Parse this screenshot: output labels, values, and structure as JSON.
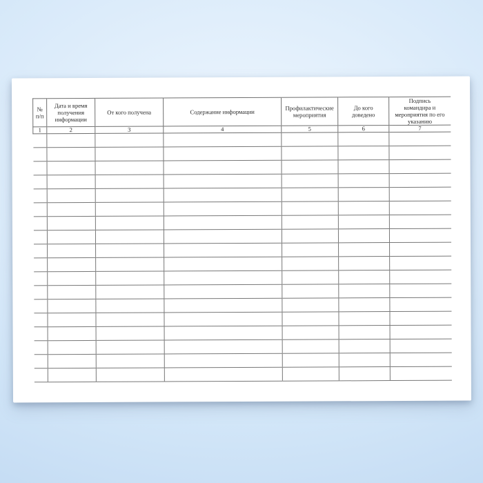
{
  "scene": {
    "background_center_color": "#eff7fe",
    "background_edge_color": "#bcd6f0",
    "paper_color": "#ffffff"
  },
  "journal_table": {
    "line_color": "#6e6e6e",
    "text_color": "#2b2b2b",
    "columns": [
      {
        "number": "1",
        "title": "№\nп/п"
      },
      {
        "number": "2",
        "title": "Дата и время\nполучения\nинформации"
      },
      {
        "number": "3",
        "title": "От кого получена"
      },
      {
        "number": "4",
        "title": "Содержание информации"
      },
      {
        "number": "5",
        "title": "Профилактические\nмероприятия"
      },
      {
        "number": "6",
        "title": "До кого\nдоведено"
      },
      {
        "number": "7",
        "title": "Подпись\nкомандира и\nмероприятия по его\nуказанию"
      }
    ],
    "empty_row_count": 18
  }
}
